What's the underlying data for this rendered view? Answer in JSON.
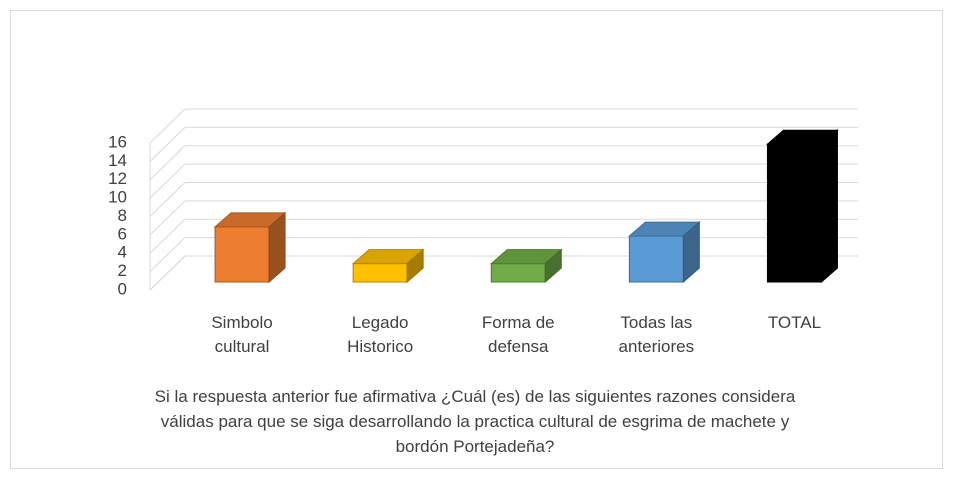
{
  "chart_data": {
    "type": "bar3d",
    "title": "Si la respuesta anterior fue afirmativa ¿Cuál (es) de las siguientes razones considera válidas para que se siga desarrollando la practica cultural de esgrima de machete y bordón Portejadeña?",
    "categories": [
      "Simbolo cultural",
      "Legado Historico",
      "Forma de defensa",
      "Todas las anteriores",
      "TOTAL"
    ],
    "values": [
      6,
      2,
      2,
      5,
      15
    ],
    "colors": [
      "#ed7d31",
      "#ffc000",
      "#70ad47",
      "#5b9bd5",
      "#000000"
    ],
    "ylim": [
      0,
      16
    ],
    "yticks": [
      0,
      2,
      4,
      6,
      8,
      10,
      12,
      14,
      16
    ],
    "grid": true
  }
}
